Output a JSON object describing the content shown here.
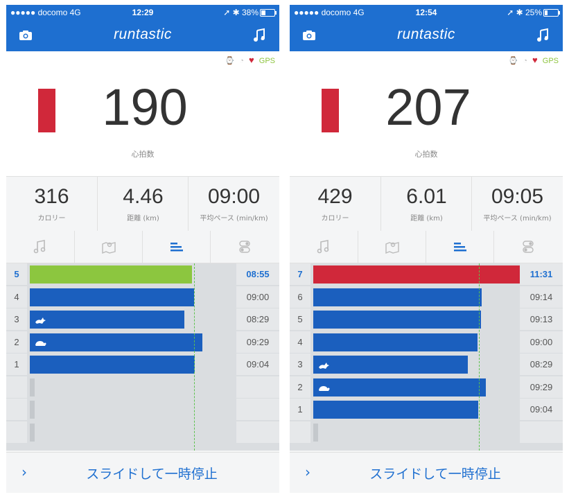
{
  "screens": [
    {
      "status": {
        "carrier": "●●●●● docomo  4G",
        "time": "12:29",
        "battery": "38%",
        "battery_fraction": 0.38
      },
      "header": {
        "logo": "runtastic",
        "camera_icon": "camera-icon",
        "music_icon": "music-power-song-icon"
      },
      "indicators": {
        "gps": "GPS",
        "watch_icon": "watch-icon",
        "speedometer_icon": "speedometer-icon",
        "heart_icon": "heart-icon"
      },
      "heart_rate": {
        "value": "190",
        "label": "心拍数",
        "zone_color": "#d0283a"
      },
      "stats": [
        {
          "value": "316",
          "label": "カロリー"
        },
        {
          "value": "4.46",
          "label": "距離 (km)"
        },
        {
          "value": "09:00",
          "label": "平均ペース (min/km)"
        }
      ],
      "tabs": [
        {
          "icon": "music-icon",
          "active": false
        },
        {
          "icon": "map-icon",
          "active": false
        },
        {
          "icon": "splits-icon",
          "active": true
        },
        {
          "icon": "toggle-settings-icon",
          "active": false
        }
      ],
      "average_pace": "09:00",
      "laps": [
        {
          "num": "5",
          "pace": "08:55",
          "pace_seconds": 535,
          "color": "green",
          "current": true
        },
        {
          "num": "4",
          "pace": "09:00",
          "pace_seconds": 540,
          "color": "blue"
        },
        {
          "num": "3",
          "pace": "08:29",
          "pace_seconds": 509,
          "color": "blue",
          "icon": "rabbit-icon"
        },
        {
          "num": "2",
          "pace": "09:29",
          "pace_seconds": 569,
          "color": "blue",
          "icon": "turtle-icon"
        },
        {
          "num": "1",
          "pace": "09:04",
          "pace_seconds": 544,
          "color": "blue"
        },
        {
          "num": "",
          "pace": "",
          "color": "empty"
        },
        {
          "num": "",
          "pace": "",
          "color": "empty"
        },
        {
          "num": "",
          "pace": "",
          "color": "empty"
        }
      ],
      "slider": {
        "chevron": "›",
        "text": "スライドして一時停止"
      }
    },
    {
      "status": {
        "carrier": "●●●●● docomo  4G",
        "time": "12:54",
        "battery": "25%",
        "battery_fraction": 0.25
      },
      "header": {
        "logo": "runtastic",
        "camera_icon": "camera-icon",
        "music_icon": "music-power-song-icon"
      },
      "indicators": {
        "gps": "GPS",
        "watch_icon": "watch-icon",
        "speedometer_icon": "speedometer-icon",
        "heart_icon": "heart-icon"
      },
      "heart_rate": {
        "value": "207",
        "label": "心拍数",
        "zone_color": "#d0283a"
      },
      "stats": [
        {
          "value": "429",
          "label": "カロリー"
        },
        {
          "value": "6.01",
          "label": "距離 (km)"
        },
        {
          "value": "09:05",
          "label": "平均ペース (min/km)"
        }
      ],
      "tabs": [
        {
          "icon": "music-icon",
          "active": false
        },
        {
          "icon": "map-icon",
          "active": false
        },
        {
          "icon": "splits-icon",
          "active": true
        },
        {
          "icon": "toggle-settings-icon",
          "active": false
        }
      ],
      "average_pace": "09:05",
      "laps": [
        {
          "num": "7",
          "pace": "11:31",
          "pace_seconds": 691,
          "color": "red",
          "current": true
        },
        {
          "num": "6",
          "pace": "09:14",
          "pace_seconds": 554,
          "color": "blue"
        },
        {
          "num": "5",
          "pace": "09:13",
          "pace_seconds": 553,
          "color": "blue"
        },
        {
          "num": "4",
          "pace": "09:00",
          "pace_seconds": 540,
          "color": "blue"
        },
        {
          "num": "3",
          "pace": "08:29",
          "pace_seconds": 509,
          "color": "blue",
          "icon": "rabbit-icon"
        },
        {
          "num": "2",
          "pace": "09:29",
          "pace_seconds": 569,
          "color": "blue",
          "icon": "turtle-icon"
        },
        {
          "num": "1",
          "pace": "09:04",
          "pace_seconds": 544,
          "color": "blue"
        },
        {
          "num": "",
          "pace": "",
          "color": "empty"
        }
      ],
      "slider": {
        "chevron": "›",
        "text": "スライドして一時停止"
      }
    }
  ]
}
